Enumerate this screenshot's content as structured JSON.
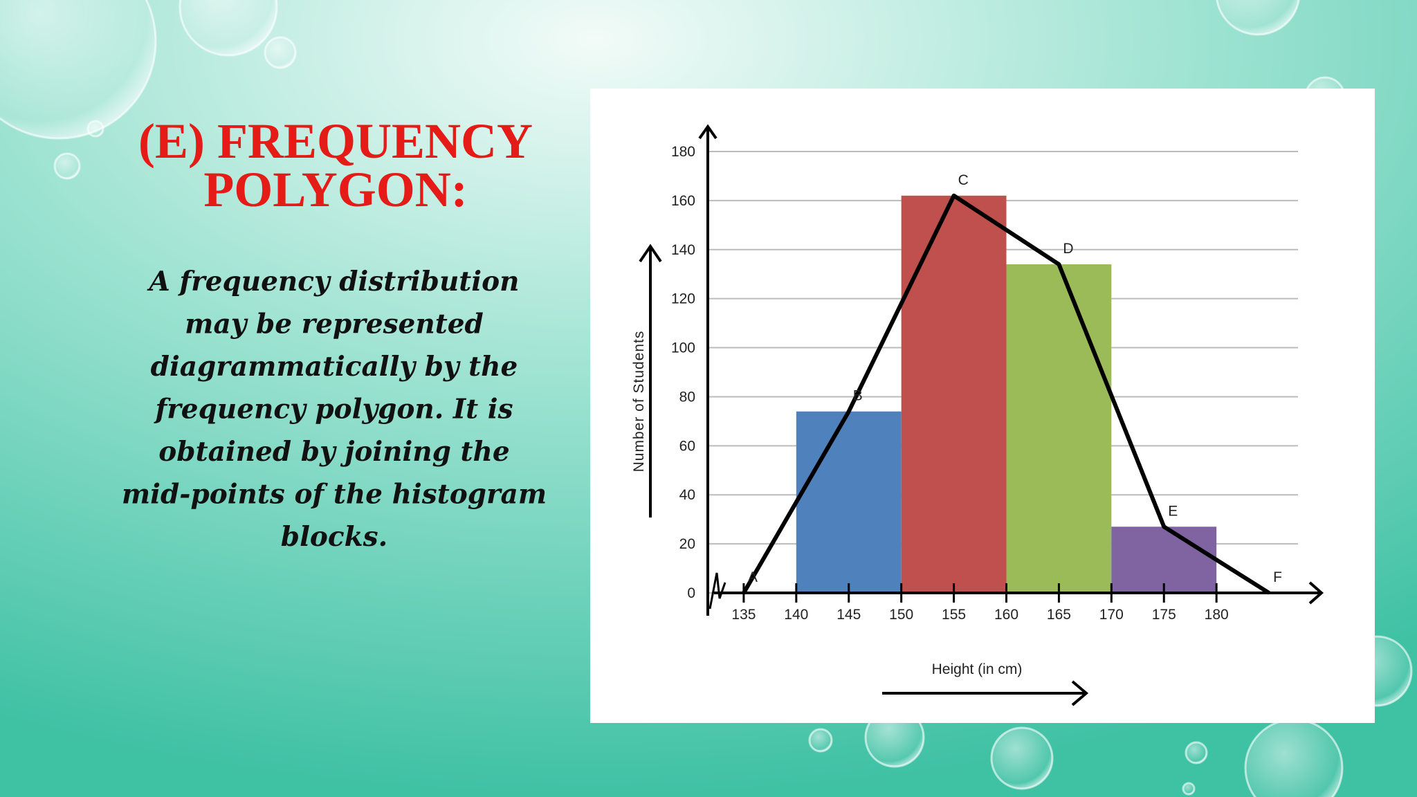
{
  "title_lines": [
    "(E) FREQUENCY",
    "POLYGON:"
  ],
  "body_lines": [
    "A frequency distribution",
    "may be represented",
    "diagrammatically by the",
    "frequency polygon. It is",
    "obtained by joining the",
    "mid-points of the histogram",
    "blocks."
  ],
  "chart_data": {
    "type": "histogram",
    "y_label": "Number of Students",
    "x_label": "Height (in cm)",
    "bins": [
      140,
      150,
      160,
      170,
      180
    ],
    "counts": [
      74,
      162,
      134,
      27
    ],
    "colors": [
      "#4f81bd",
      "#c0504d",
      "#9bbb59",
      "#8064a2"
    ],
    "polygon": {
      "x": [
        135,
        145,
        155,
        165,
        175,
        185
      ],
      "values": [
        0,
        74,
        162,
        134,
        27,
        0
      ],
      "labels": [
        "A",
        "B",
        "C",
        "D",
        "E",
        "F"
      ],
      "color": "#000000"
    },
    "xlim": [
      130,
      190
    ],
    "xticks": [
      135,
      140,
      145,
      150,
      155,
      160,
      165,
      170,
      175,
      180
    ],
    "ylim": [
      0,
      180
    ],
    "yticks": [
      0,
      20,
      40,
      60,
      80,
      100,
      120,
      140,
      160,
      180
    ],
    "grid": true
  }
}
